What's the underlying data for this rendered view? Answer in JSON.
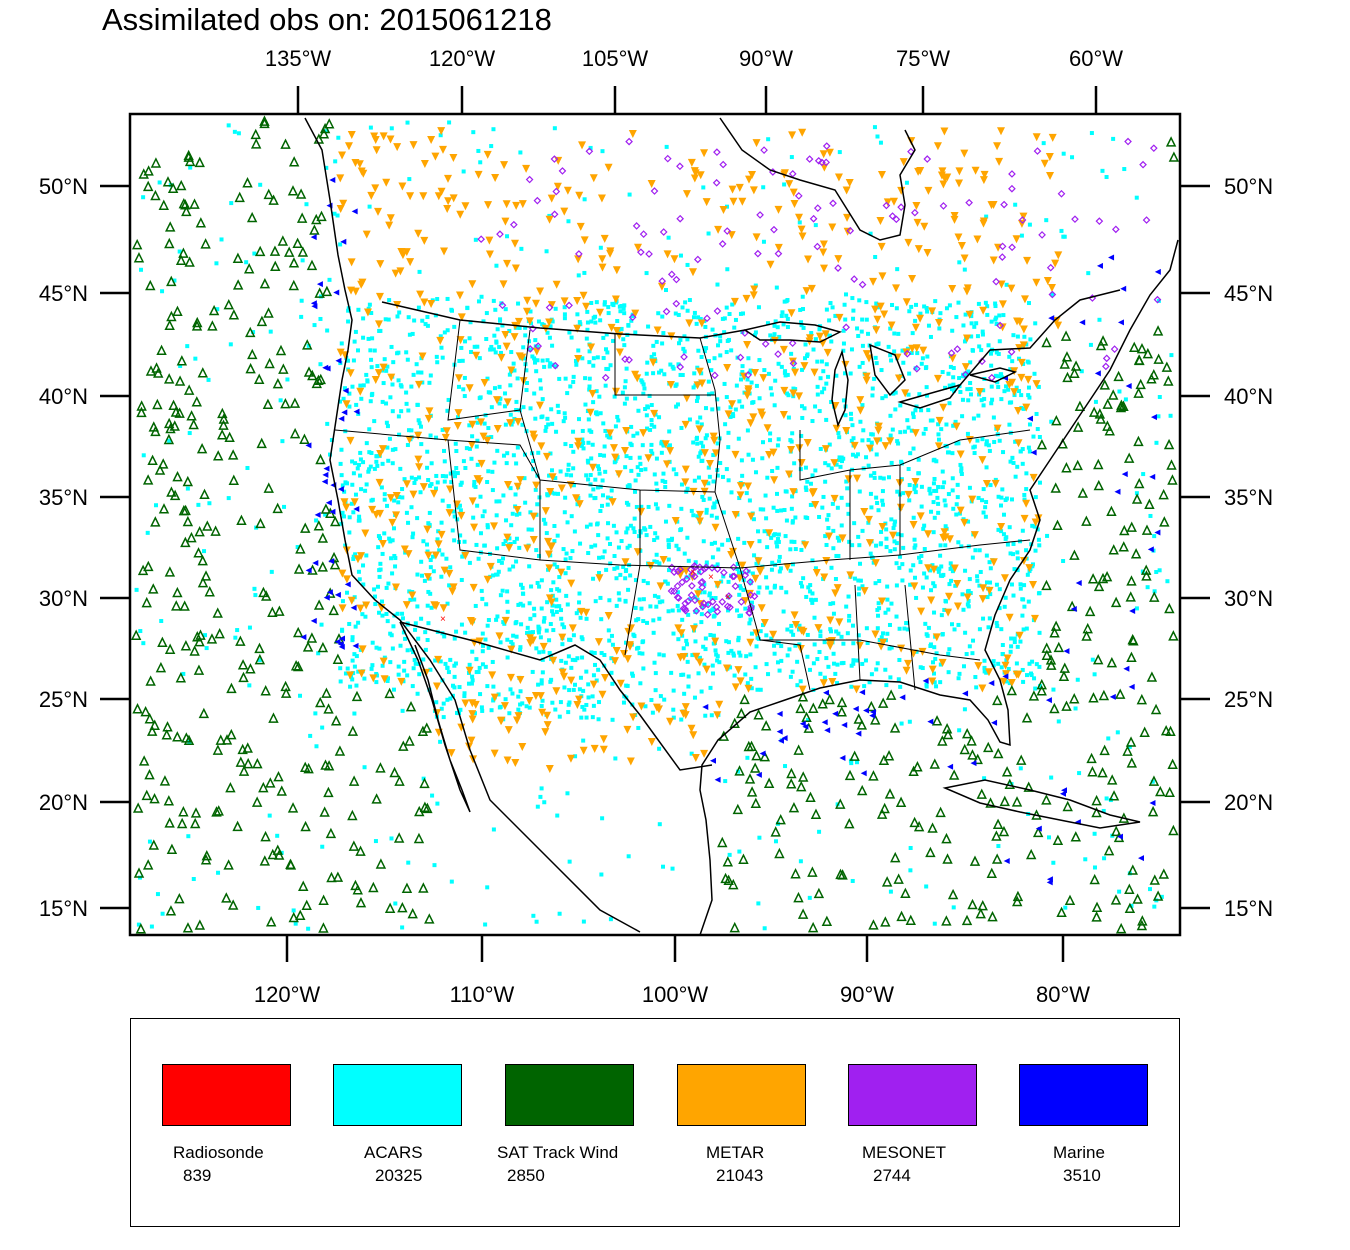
{
  "title": "Assimilated obs on: 2015061218",
  "top_axis_labels": [
    "135°W",
    "120°W",
    "105°W",
    "90°W",
    "75°W",
    "60°W"
  ],
  "bottom_axis_labels": [
    "120°W",
    "110°W",
    "100°W",
    "90°W",
    "80°W"
  ],
  "left_axis_labels": [
    "50°N",
    "45°N",
    "40°N",
    "35°N",
    "30°N",
    "25°N",
    "20°N",
    "15°N"
  ],
  "right_axis_labels": [
    "50°N",
    "45°N",
    "40°N",
    "35°N",
    "30°N",
    "25°N",
    "20°N",
    "15°N"
  ],
  "legend": [
    {
      "name": "Radiosonde",
      "count": "839",
      "color": "#ff0000"
    },
    {
      "name": "ACARS",
      "count": "20325",
      "color": "#00ffff"
    },
    {
      "name": "SAT Track Wind",
      "count": "2850",
      "color": "#006400"
    },
    {
      "name": "METAR",
      "count": "21043",
      "color": "#ffa500"
    },
    {
      "name": "MESONET",
      "count": "2744",
      "color": "#a020f0"
    },
    {
      "name": "Marine",
      "count": "3510",
      "color": "#0000ff"
    }
  ],
  "colors": {
    "acars": "#00ffff",
    "sat_track_wind": "#006400",
    "metar": "#ffa500",
    "mesonet": "#a020f0",
    "marine": "#0000ff",
    "radiosonde": "#ff0000",
    "coastline": "#000000"
  }
}
